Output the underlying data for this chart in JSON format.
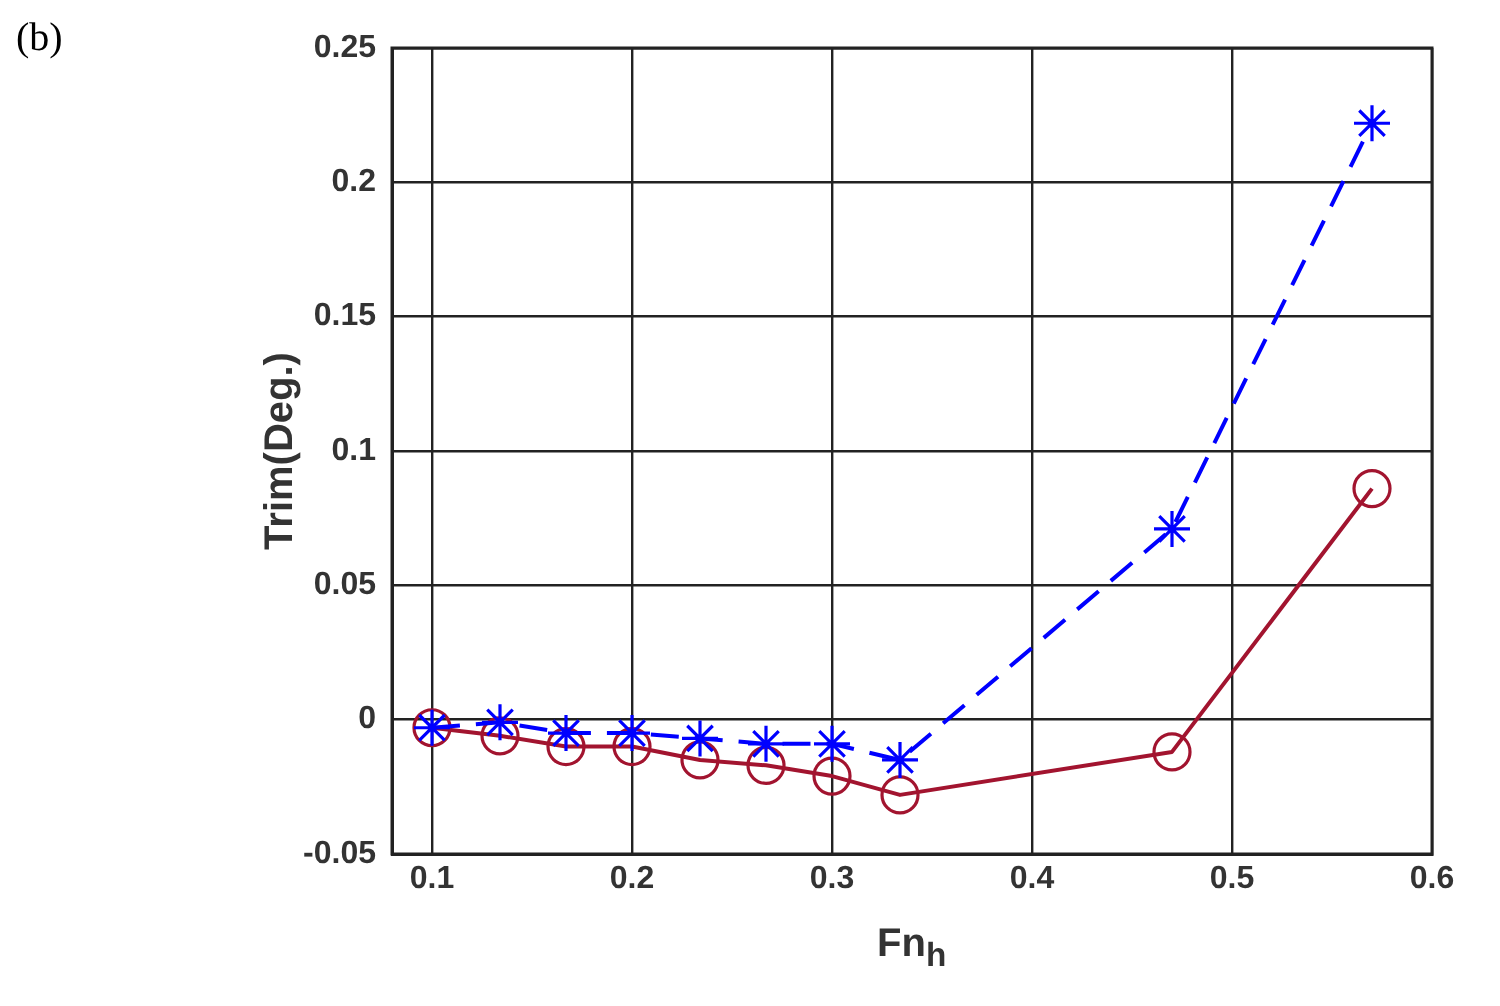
{
  "chart_data": {
    "type": "line",
    "xlabel": "Fn$_{h}$",
    "ylabel": "Trim(Deg.)",
    "annotations": [
      "(b)"
    ],
    "x": [
      0.1,
      0.134,
      0.167,
      0.2,
      0.234,
      0.267,
      0.3,
      0.334,
      0.47,
      0.57
    ],
    "series": [
      {
        "color": "#0000ff",
        "marker": "cross",
        "line_style": "dashed",
        "values": [
          -0.003,
          -0.001,
          -0.005,
          -0.005,
          -0.007,
          -0.009,
          -0.009,
          -0.015,
          0.071,
          0.222
        ]
      },
      {
        "color": "#a2142f",
        "marker": "circle",
        "line_style": "solid",
        "values": [
          -0.003,
          -0.006,
          -0.01,
          -0.01,
          -0.015,
          -0.017,
          -0.021,
          -0.028,
          -0.012,
          0.086
        ]
      }
    ],
    "xlim": [
      0.08,
      0.6
    ],
    "xticks": [
      0.1,
      0.2,
      0.3,
      0.4,
      0.5,
      0.6
    ],
    "ylim": [
      -0.05,
      0.25
    ],
    "yticks": [
      -0.05,
      0,
      0.05,
      0.1,
      0.15,
      0.2,
      0.25
    ],
    "grid": true
  }
}
